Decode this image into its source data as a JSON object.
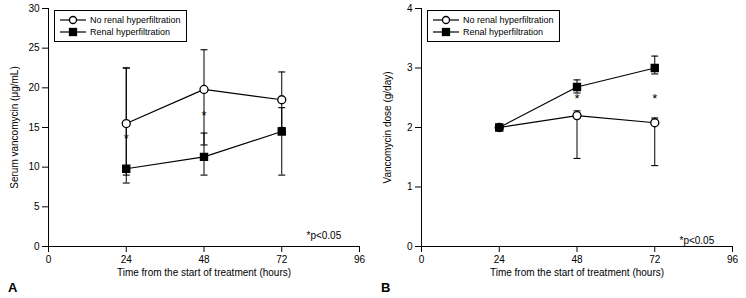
{
  "chart_data": [
    {
      "type": "line",
      "title": "A",
      "xlabel": "Time from the start of treatment (hours)",
      "ylabel": "Serum vancomycin (μg/mL)",
      "x": [
        24,
        48,
        72
      ],
      "series": [
        {
          "name": "No renal hyperfiltration",
          "color": "black",
          "marker": "open_circle",
          "values": [
            15.5,
            19.8,
            18.5
          ],
          "yerr_lo": [
            6.5,
            7.0,
            3.5
          ],
          "yerr_hi": [
            7.0,
            5.0,
            3.5
          ]
        },
        {
          "name": "Renal hyperfiltration",
          "color": "black",
          "marker": "square",
          "values": [
            9.8,
            11.3,
            14.5
          ],
          "yerr_lo": [
            1.8,
            2.3,
            5.5
          ],
          "yerr_hi": [
            12.7,
            3.0,
            3.0
          ]
        }
      ],
      "xlim": [
        0,
        96
      ],
      "ylim": [
        0,
        30
      ],
      "xticks": [
        0,
        24,
        48,
        72,
        96
      ],
      "yticks": [
        0,
        5,
        10,
        15,
        20,
        25,
        30
      ],
      "grid": false,
      "legend": "upper left",
      "annotations": [
        {
          "text": "*",
          "x": 24,
          "y": 13.0
        },
        {
          "text": "*",
          "x": 48,
          "y": 16.0
        },
        {
          "text": "*p<0.05",
          "x": 85,
          "y": 1.0
        }
      ]
    },
    {
      "type": "line",
      "title": "B",
      "xlabel": "Time from the start of treatment (hours)",
      "ylabel": "Vancomycin dose (g/day)",
      "x": [
        24,
        48,
        72
      ],
      "series": [
        {
          "name": "No renal hyperfiltration",
          "color": "black",
          "marker": "open_circle",
          "values": [
            2.0,
            2.2,
            2.08
          ],
          "yerr_lo": [
            0.0,
            0.72,
            0.72
          ],
          "yerr_hi": [
            0.0,
            0.08,
            0.08
          ]
        },
        {
          "name": "Renal hyperfiltration",
          "color": "black",
          "marker": "square",
          "values": [
            2.0,
            2.68,
            3.0
          ],
          "yerr_lo": [
            0.0,
            0.1,
            0.1
          ],
          "yerr_hi": [
            0.0,
            0.12,
            0.2
          ]
        }
      ],
      "xlim": [
        0,
        96
      ],
      "ylim": [
        0,
        4
      ],
      "xticks": [
        0,
        24,
        48,
        72,
        96
      ],
      "yticks": [
        0,
        1,
        2,
        3,
        4
      ],
      "grid": false,
      "legend": "upper left",
      "annotations": [
        {
          "text": "*",
          "x": 48,
          "y": 2.42
        },
        {
          "text": "*",
          "x": 72,
          "y": 2.42
        },
        {
          "text": "*p<0.05",
          "x": 85,
          "y": 0.04
        }
      ]
    }
  ]
}
